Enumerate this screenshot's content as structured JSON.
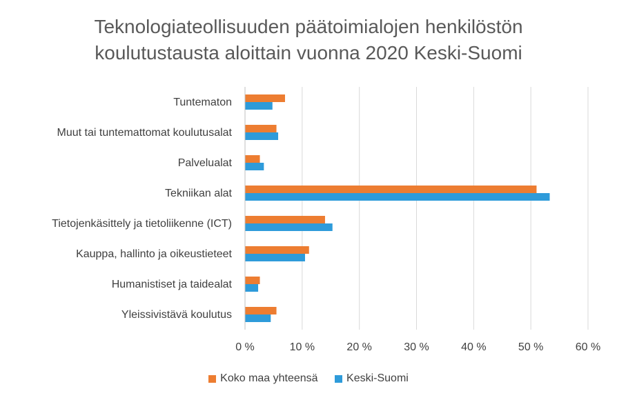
{
  "chart_data": {
    "type": "bar",
    "orientation": "horizontal",
    "title": [
      "Teknologiateollisuuden päätoimialojen henkilöstön",
      "koulutustausta aloittain vuonna 2020 Keski-Suomi"
    ],
    "categories": [
      "Tuntematon",
      "Muut tai tuntemattomat koulutusalat",
      "Palvelualat",
      "Tekniikan alat",
      "Tietojenkäsittely ja tietoliikenne (ICT)",
      "Kauppa, hallinto ja oikeustieteet",
      "Humanistiset ja taidealat",
      "Yleissivistävä koulutus"
    ],
    "series": [
      {
        "name": "Koko maa yhteensä",
        "color": "#ED7D31",
        "values": [
          7.0,
          5.5,
          2.6,
          51.0,
          14.0,
          11.2,
          2.6,
          5.5
        ]
      },
      {
        "name": "Keski-Suomi",
        "color": "#2E9BDA",
        "values": [
          4.8,
          5.8,
          3.3,
          53.3,
          15.3,
          10.5,
          2.3,
          4.5
        ]
      }
    ],
    "xlim": [
      0,
      60
    ],
    "x_ticks": [
      "0 %",
      "10 %",
      "20 %",
      "30 %",
      "40 %",
      "50 %",
      "60 %"
    ],
    "grid": true,
    "legend_position": "bottom"
  }
}
